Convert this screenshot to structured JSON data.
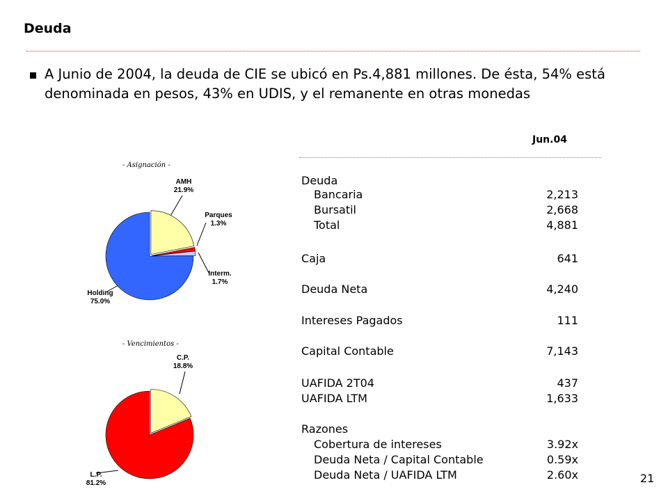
{
  "title": "Deuda",
  "bullet": "A Junio de 2004, la deuda de CIE se ubicó en Ps.4,881  millones. De ésta, 54% está denominada en pesos, 43% en UDIS, y el remanente en otras monedas",
  "table": {
    "column_header": "Jun.04",
    "rows": [
      {
        "label": "Deuda",
        "value": "",
        "indent": false
      },
      {
        "label": "Bancaria",
        "value": "2,213",
        "indent": true
      },
      {
        "label": "Bursatil",
        "value": "2,668",
        "indent": true
      },
      {
        "label": "Total",
        "value": "4,881",
        "indent": true
      },
      {
        "label": "Caja",
        "value": "641",
        "indent": false
      },
      {
        "label": "Deuda Neta",
        "value": "4,240",
        "indent": false
      },
      {
        "label": "Intereses Pagados",
        "value": "111",
        "indent": false
      },
      {
        "label": "Capital Contable",
        "value": "7,143",
        "indent": false
      },
      {
        "label": "UAFIDA 2T04",
        "value": "437",
        "indent": false
      },
      {
        "label": "UAFIDA LTM",
        "value": "1,633",
        "indent": false
      },
      {
        "label": "Razones",
        "value": "",
        "indent": false
      },
      {
        "label": "Cobertura de intereses",
        "value": "3.92x",
        "indent": true
      },
      {
        "label": "Deuda Neta / Capital Contable",
        "value": "0.59x",
        "indent": true
      },
      {
        "label": "Deuda Neta / UAFIDA LTM",
        "value": "2.60x",
        "indent": true
      }
    ]
  },
  "chart_data": [
    {
      "type": "pie",
      "title": "- Asignación -",
      "slices": [
        {
          "name": "AMH",
          "value": 21.9,
          "label": "21.9%",
          "color": "#ffffa8"
        },
        {
          "name": "Parques",
          "value": 1.3,
          "label": "1.3%",
          "color": "#ff0000"
        },
        {
          "name": "Interm.",
          "value": 1.7,
          "label": "1.7%",
          "color": "#c8c8ff"
        },
        {
          "name": "Holding",
          "value": 75.0,
          "label": "75.0%",
          "color": "#3366ff"
        }
      ]
    },
    {
      "type": "pie",
      "title": "- Vencimientos -",
      "slices": [
        {
          "name": "C.P.",
          "value": 18.8,
          "label": "18.8%",
          "color": "#ffffa8"
        },
        {
          "name": "L.P.",
          "value": 81.2,
          "label": "81.2%",
          "color": "#ff0000"
        }
      ]
    }
  ],
  "page_number": "21"
}
